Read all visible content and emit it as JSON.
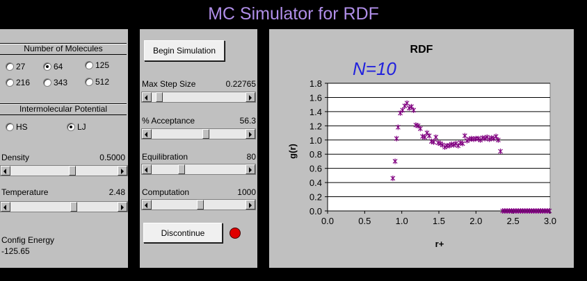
{
  "app_title": "MC Simulator for RDF",
  "molecules": {
    "label": "Number of Molecules",
    "options": [
      {
        "label": "27",
        "selected": false
      },
      {
        "label": "64",
        "selected": true
      },
      {
        "label": "125",
        "selected": false
      },
      {
        "label": "216",
        "selected": false
      },
      {
        "label": "343",
        "selected": false
      },
      {
        "label": "512",
        "selected": false
      }
    ]
  },
  "potential": {
    "label": "Intermolecular Potential",
    "options": [
      {
        "label": "HS",
        "selected": false
      },
      {
        "label": "LJ",
        "selected": true
      }
    ]
  },
  "density": {
    "label": "Density",
    "value": "0.5000",
    "slider_fraction": 0.58
  },
  "temperature": {
    "label": "Temperature",
    "value": "2.48",
    "slider_fraction": 0.6
  },
  "config_energy": {
    "label": "Config Energy",
    "value": "-125.65"
  },
  "begin_button": "Begin Simulation",
  "discontinue_button": "Discontinue",
  "status_color": "#e00000",
  "max_step": {
    "label": "Max Step Size",
    "value": "0.22765",
    "slider_fraction": 0.05
  },
  "acceptance": {
    "label": "% Acceptance",
    "value": "56.3",
    "slider_fraction": 0.58
  },
  "equilibration": {
    "label": "Equilibration",
    "value": "80",
    "slider_fraction": 0.3
  },
  "computation": {
    "label": "Computation",
    "value": "1000",
    "slider_fraction": 0.52
  },
  "annotation": "N=10",
  "chart_data": {
    "type": "scatter",
    "title": "RDF",
    "xlabel": "r+",
    "ylabel": "g(r)",
    "xlim": [
      0.0,
      3.0
    ],
    "ylim": [
      0.0,
      1.8
    ],
    "xticks": [
      "0.0",
      "0.5",
      "1.0",
      "1.5",
      "2.0",
      "2.5",
      "3.0"
    ],
    "yticks": [
      "0.0",
      "0.2",
      "0.4",
      "0.6",
      "0.8",
      "1.0",
      "1.2",
      "1.4",
      "1.6",
      "1.8"
    ],
    "marker_color": "#800080",
    "x": [
      0.88,
      0.91,
      0.93,
      0.95,
      0.98,
      1.01,
      1.04,
      1.07,
      1.1,
      1.13,
      1.16,
      1.19,
      1.22,
      1.25,
      1.28,
      1.31,
      1.34,
      1.37,
      1.4,
      1.43,
      1.46,
      1.49,
      1.52,
      1.55,
      1.58,
      1.61,
      1.64,
      1.67,
      1.7,
      1.73,
      1.76,
      1.79,
      1.82,
      1.85,
      1.88,
      1.91,
      1.94,
      1.97,
      2.0,
      2.03,
      2.06,
      2.09,
      2.12,
      2.15,
      2.18,
      2.21,
      2.24,
      2.27,
      2.3,
      2.33,
      2.36,
      2.39,
      2.42,
      2.45,
      2.48,
      2.51,
      2.54,
      2.57,
      2.6,
      2.63,
      2.66,
      2.69,
      2.72,
      2.75,
      2.78,
      2.81,
      2.84,
      2.87,
      2.9,
      2.93,
      2.96,
      2.99
    ],
    "y": [
      0.46,
      0.7,
      1.02,
      1.18,
      1.38,
      1.42,
      1.48,
      1.52,
      1.45,
      1.47,
      1.42,
      1.21,
      1.2,
      1.16,
      1.05,
      1.04,
      1.1,
      1.06,
      0.98,
      0.97,
      1.04,
      0.96,
      0.95,
      0.93,
      0.9,
      0.92,
      0.92,
      0.94,
      0.93,
      0.95,
      0.92,
      0.96,
      0.95,
      1.06,
      0.99,
      1.01,
      1.02,
      1.01,
      1.02,
      1.02,
      1.0,
      1.03,
      1.02,
      1.04,
      1.01,
      1.03,
      1.02,
      1.05,
      1.0,
      0.84,
      0.0,
      0.0,
      0.0,
      0.0,
      0.0,
      0.0,
      0.0,
      0.0,
      0.0,
      0.0,
      0.0,
      0.0,
      0.0,
      0.0,
      0.0,
      0.0,
      0.0,
      0.0,
      0.0,
      0.0,
      0.0,
      0.0
    ]
  }
}
